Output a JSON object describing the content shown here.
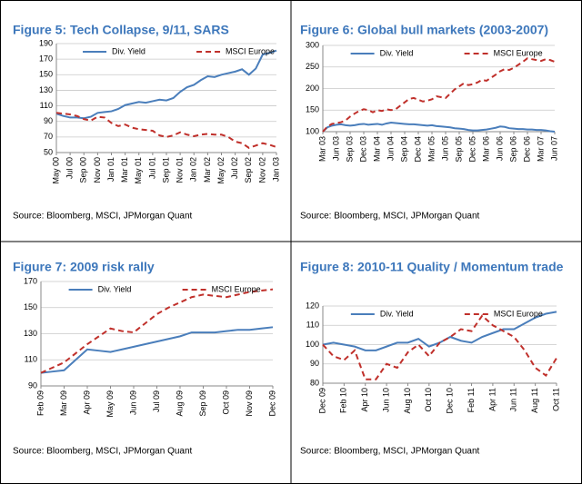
{
  "chart_data": [
    {
      "type": "line",
      "title": "Figure 5: Tech Collapse, 9/11, SARS",
      "source": "Source: Bloomberg, MSCI, JPMorgan Quant",
      "categories": [
        "May 00",
        null,
        "Jul 00",
        null,
        "Sep 00",
        null,
        "Nov 00",
        null,
        "Jan 01",
        null,
        "Mar 01",
        null,
        "May 01",
        null,
        "Jul 01",
        null,
        "Sep 01",
        null,
        "Nov 01",
        null,
        "Jan 02",
        null,
        "Mar 02",
        null,
        "May 02",
        null,
        "Jul 02",
        null,
        "Sep 02",
        null,
        "Nov 02",
        null,
        "Jan 03"
      ],
      "series": [
        {
          "name": "Div. Yield",
          "color": "#4a7ebb",
          "dashed": false,
          "values": [
            100,
            97,
            95,
            95,
            94,
            96,
            101,
            102,
            103,
            106,
            111,
            113,
            115,
            114,
            116,
            118,
            117,
            120,
            128,
            134,
            137,
            143,
            148,
            147,
            150,
            152,
            154,
            157,
            150,
            158,
            176,
            178,
            181
          ]
        },
        {
          "name": "MSCI Europe",
          "color": "#c0302b",
          "dashed": true,
          "values": [
            101,
            100,
            99,
            97,
            93,
            91,
            96,
            95,
            88,
            84,
            86,
            82,
            80,
            79,
            78,
            72,
            70,
            72,
            76,
            73,
            71,
            73,
            74,
            73,
            73,
            70,
            64,
            62,
            56,
            59,
            62,
            60,
            57
          ]
        }
      ],
      "ylim": [
        50,
        190
      ],
      "yticks": [
        50,
        70,
        90,
        110,
        130,
        150,
        170,
        190
      ],
      "grid": true,
      "legend": "top"
    },
    {
      "type": "line",
      "title": "Figure 6: Global bull markets (2003-2007)",
      "source": "Source: Bloomberg, MSCI, JPMorgan Quant",
      "categories": [
        "Mar 03",
        null,
        null,
        "Jun 03",
        null,
        null,
        "Sep 03",
        null,
        null,
        "Dec 03",
        null,
        null,
        "Mar 04",
        null,
        null,
        "Jun 04",
        null,
        null,
        "Sep 04",
        null,
        null,
        "Dec 04",
        null,
        null,
        "Mar 05",
        null,
        null,
        "Jun 05",
        null,
        null,
        "Sep 05",
        null,
        null,
        "Dec 05",
        null,
        null,
        "Mar 06",
        null,
        null,
        "Jun 06",
        null,
        null,
        "Sep 06",
        null,
        null,
        "Dec 06",
        null,
        null,
        "Mar 07",
        null,
        null,
        "Jun 07"
      ],
      "series": [
        {
          "name": "Div. Yield",
          "color": "#4a7ebb",
          "dashed": false,
          "values": [
            100,
            110,
            114,
            116,
            117,
            115,
            114,
            115,
            117,
            118,
            116,
            117,
            118,
            116,
            119,
            121,
            120,
            119,
            118,
            117,
            117,
            116,
            115,
            114,
            115,
            113,
            112,
            111,
            110,
            108,
            107,
            106,
            104,
            103,
            103,
            104,
            105,
            107,
            109,
            112,
            111,
            108,
            107,
            106,
            106,
            105,
            105,
            104,
            104,
            103,
            101,
            100
          ]
        },
        {
          "name": "MSCI Europe",
          "color": "#c0302b",
          "dashed": true,
          "values": [
            100,
            112,
            118,
            120,
            122,
            126,
            135,
            142,
            148,
            152,
            150,
            145,
            150,
            148,
            152,
            150,
            152,
            160,
            168,
            176,
            178,
            174,
            170,
            172,
            175,
            182,
            180,
            178,
            188,
            198,
            205,
            212,
            208,
            210,
            214,
            220,
            218,
            225,
            232,
            240,
            245,
            243,
            248,
            255,
            262,
            270,
            268,
            266,
            264,
            268,
            266,
            262
          ]
        }
      ],
      "ylim": [
        100,
        300
      ],
      "yticks": [
        100,
        150,
        200,
        250,
        300
      ],
      "grid": true,
      "legend": "top"
    },
    {
      "type": "line",
      "title": "Figure 7: 2009 risk rally",
      "source": "Source: Bloomberg, MSCI, JPMorgan Quant",
      "categories": [
        "Feb 09",
        null,
        "Mar 09",
        null,
        "Apr 09",
        null,
        "May 09",
        null,
        "Jun 09",
        null,
        "Jul 09",
        null,
        "Aug 09",
        null,
        "Sep 09",
        null,
        "Oct 09",
        null,
        "Nov 09",
        null,
        "Dec 09"
      ],
      "series": [
        {
          "name": "Div. Yield",
          "color": "#4a7ebb",
          "dashed": false,
          "values": [
            100,
            101,
            102,
            110,
            118,
            117,
            116,
            118,
            120,
            122,
            124,
            126,
            128,
            131,
            131,
            131,
            132,
            133,
            133,
            134,
            135
          ]
        },
        {
          "name": "MSCI Europe",
          "color": "#c0302b",
          "dashed": true,
          "values": [
            100,
            104,
            108,
            115,
            122,
            128,
            134,
            132,
            131,
            138,
            145,
            150,
            154,
            158,
            160,
            159,
            158,
            160,
            162,
            163,
            164
          ]
        }
      ],
      "ylim": [
        90,
        170
      ],
      "yticks": [
        90,
        110,
        130,
        150,
        170
      ],
      "grid": true,
      "legend": "top"
    },
    {
      "type": "line",
      "title": "Figure 8: 2010-11 Quality / Momentum trade",
      "source": "Source: Bloomberg, MSCI, JPMorgan Quant",
      "categories": [
        "Dec 09",
        null,
        "Feb 10",
        null,
        "Apr 10",
        null,
        "Jun 10",
        null,
        "Aug 10",
        null,
        "Oct 10",
        null,
        "Dec 10",
        null,
        "Feb 11",
        null,
        "Apr 11",
        null,
        "Jun 11",
        null,
        "Aug 11",
        null,
        "Oct 11"
      ],
      "series": [
        {
          "name": "Div. Yield",
          "color": "#4a7ebb",
          "dashed": false,
          "values": [
            100,
            101,
            100,
            99,
            97,
            97,
            99,
            101,
            101,
            103,
            99,
            101,
            104,
            102,
            101,
            104,
            106,
            108,
            108,
            111,
            114,
            116,
            117
          ]
        },
        {
          "name": "MSCI Europe",
          "color": "#c0302b",
          "dashed": true,
          "values": [
            100,
            94,
            92,
            97,
            82,
            82,
            90,
            88,
            96,
            100,
            94,
            101,
            104,
            108,
            107,
            115,
            110,
            107,
            104,
            97,
            88,
            84,
            93
          ]
        }
      ],
      "ylim": [
        80,
        120
      ],
      "yticks": [
        80,
        90,
        100,
        110,
        120
      ],
      "grid": true,
      "legend": "top"
    }
  ]
}
